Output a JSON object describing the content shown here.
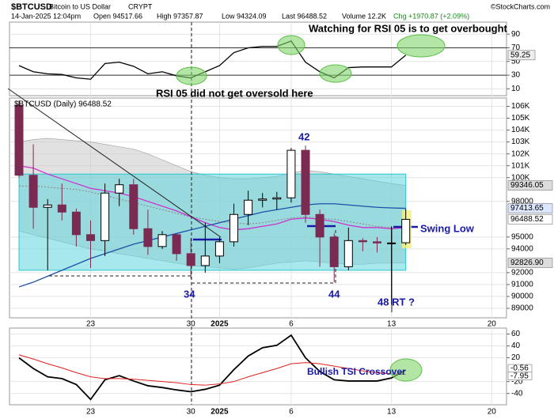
{
  "header": {
    "symbol": "$BTCUSD",
    "name": "Bitcoin to US Dollar",
    "exchange": "CRYPT",
    "credit": "©StockCharts.com",
    "stamp": "14-Jan-2025 12:04pm",
    "open": "Open 94517.66",
    "high": "High 97357.87",
    "low": "Low 94324.09",
    "last": "Last 96488.52",
    "volume": "Volume 12.2K",
    "change": "Chg +1970.87 (+2.09%)"
  },
  "chart_data": {
    "type": "candlestick",
    "legend": "$BTCUSD (Daily) 96488.52",
    "categories": [
      null,
      null,
      null,
      null,
      null,
      "23",
      null,
      null,
      null,
      null,
      null,
      null,
      "30",
      null,
      "2025",
      null,
      null,
      null,
      null,
      "6",
      null,
      null,
      null,
      null,
      null,
      null,
      "13",
      null,
      null,
      null,
      null,
      null,
      null,
      "20"
    ],
    "open": [
      106100,
      100200,
      97500,
      97700,
      97100,
      95200,
      94700,
      98700,
      99400,
      95700,
      94200,
      95200,
      93600,
      92600,
      93400,
      94600,
      96900,
      98100,
      98200,
      98300,
      102300,
      96900,
      95000,
      92500,
      94700,
      94600,
      94500,
      94517.66,
      null,
      null,
      null,
      null,
      null,
      null
    ],
    "high": [
      106500,
      102800,
      98200,
      99500,
      97400,
      96400,
      99500,
      99900,
      99900,
      97300,
      95500,
      95300,
      94900,
      96200,
      95000,
      97800,
      98900,
      98700,
      98800,
      102500,
      102700,
      97300,
      95300,
      95800,
      94900,
      95000,
      95900,
      97357.87,
      null,
      null,
      null,
      null,
      null,
      null
    ],
    "low": [
      100000,
      95700,
      92200,
      96400,
      94200,
      92400,
      93400,
      97600,
      95200,
      93500,
      94000,
      93000,
      91500,
      92000,
      92800,
      94200,
      96000,
      97500,
      97300,
      97900,
      96200,
      92500,
      91200,
      92200,
      93800,
      93700,
      89300,
      94324.09,
      null,
      null,
      null,
      null,
      null,
      null
    ],
    "close": [
      100200,
      97500,
      97700,
      97100,
      95200,
      94700,
      98700,
      99400,
      95700,
      94200,
      95200,
      93600,
      92600,
      93400,
      94600,
      96900,
      98100,
      98200,
      98300,
      102300,
      96900,
      95000,
      92500,
      94700,
      94600,
      94500,
      94500,
      96488.52,
      null,
      null,
      null,
      null,
      null,
      null
    ],
    "up_color": "#000000",
    "down_color": "#7b2a52",
    "bands": {
      "color": "#c8c8c8",
      "upper": [
        103000,
        103200,
        103300,
        103200,
        103100,
        103000,
        102800,
        102600,
        102400,
        102000,
        101500,
        101000,
        100500,
        100200,
        100000,
        99900,
        99900,
        100000,
        100100,
        100400,
        100600,
        100500,
        100300,
        100100,
        99900,
        99700,
        99500,
        99346.05,
        null,
        null,
        null,
        null,
        null,
        null
      ],
      "lower": [
        95500,
        95200,
        94900,
        94600,
        94300,
        94000,
        93800,
        93600,
        93400,
        93200,
        93000,
        92800,
        92600,
        92500,
        92400,
        92300,
        92400,
        92600,
        92800,
        92900,
        93000,
        92900,
        92800,
        92700,
        92700,
        92800,
        92800,
        92826.9,
        null,
        null,
        null,
        null,
        null,
        null
      ]
    },
    "overlays": [
      {
        "color": "#888888",
        "dash": true,
        "values": [
          99300,
          99300,
          99200,
          99100,
          99000,
          98800,
          98500,
          98200,
          97900,
          97600,
          97300,
          97000,
          96700,
          96500,
          96300,
          96200,
          96100,
          96200,
          96400,
          96600,
          96700,
          96600,
          96500,
          96300,
          96100,
          95900,
          95800,
          95700,
          null,
          null,
          null,
          null,
          null,
          null
        ]
      },
      {
        "color": "#cc33cc",
        "dash": false,
        "values": [
          101000,
          100800,
          100300,
          99900,
          99500,
          99100,
          98900,
          98700,
          98400,
          98000,
          97600,
          97200,
          96700,
          96200,
          95800,
          95600,
          95700,
          95900,
          96100,
          96500,
          96600,
          96500,
          96300,
          96000,
          95800,
          95800,
          95700,
          95800,
          null,
          null,
          null,
          null,
          null,
          null
        ]
      },
      {
        "color": "#1f4fa8",
        "dash": false,
        "values": [
          90800,
          91200,
          91700,
          92200,
          92700,
          93200,
          93600,
          94000,
          94400,
          94700,
          95000,
          95300,
          95600,
          95900,
          96200,
          96500,
          96800,
          97100,
          97300,
          97500,
          97700,
          97800,
          97800,
          97700,
          97600,
          97500,
          97450,
          97413.65,
          null,
          null,
          null,
          null,
          null,
          null
        ]
      }
    ],
    "zone": {
      "color": "#5fd6dc",
      "range": [
        92200,
        100300
      ]
    },
    "ylim": [
      88200,
      106700
    ],
    "yticks": [
      89000,
      90000,
      91000,
      92000,
      94000,
      95000,
      98000,
      {
        "value": 100000,
        "label": "100K"
      },
      {
        "value": 101000,
        "label": "101K"
      },
      {
        "value": 102000,
        "label": "102K"
      },
      {
        "value": 103000,
        "label": "103K"
      },
      {
        "value": 104000,
        "label": "104K"
      },
      {
        "value": 105000,
        "label": "105K"
      },
      {
        "value": 106000,
        "label": "106K"
      }
    ],
    "grid": true,
    "price_labels": [
      {
        "value": 99346.05,
        "color": "#dddddd"
      },
      {
        "value": 97413.65,
        "color": "#dde6ff"
      },
      {
        "value": 96488.52,
        "color": "#ffffff"
      },
      {
        "value": 92826.9,
        "label": "92826.90",
        "color": "#dddddd"
      }
    ],
    "annotations": [
      "Watching for RSI 05 is to get overbought",
      "RSI 05 did not get oversold here",
      "42",
      "34",
      "44",
      "48 RT ?",
      "Swing Low",
      "Bullish TSI Crossover"
    ],
    "rsi": {
      "type": "line",
      "color": "#000000",
      "values": [
        44,
        35,
        32,
        31,
        26,
        24,
        47,
        49,
        43,
        32,
        35,
        29,
        26,
        35,
        44,
        63,
        70,
        72,
        72,
        80,
        49,
        35,
        26,
        41,
        42,
        42,
        42,
        59.25,
        null,
        null,
        null,
        null,
        null,
        null
      ],
      "ylim": [
        0,
        107.6
      ],
      "yticks": [
        10,
        30,
        50,
        70,
        90
      ],
      "levels": [
        70,
        30
      ],
      "last": 59.25
    },
    "tsi": {
      "type": "line",
      "series": [
        {
          "color": "#000000",
          "values": [
            20,
            2,
            -12,
            -15,
            -25,
            -50,
            -17,
            -10,
            -19,
            -27,
            -30,
            -34,
            -37,
            -33,
            -26,
            0,
            23,
            37,
            41,
            58,
            20,
            -3,
            -17,
            -19,
            -19,
            -19,
            -14,
            -0.56,
            null,
            null,
            null,
            null,
            null,
            null
          ]
        },
        {
          "color": "#e02020",
          "values": [
            25,
            18,
            10,
            3,
            -5,
            -12,
            -15,
            -15,
            -16,
            -18,
            -20,
            -22,
            -25,
            -26,
            -24,
            -20,
            -12,
            -5,
            2,
            10,
            12,
            10,
            6,
            2,
            -2,
            -5,
            -7,
            -7.95,
            null,
            null,
            null,
            null,
            null,
            null
          ]
        }
      ],
      "ylim": [
        -59,
        70
      ],
      "yticks": [
        -40,
        -20,
        20,
        40,
        60
      ],
      "last": [
        -0.56,
        -7.95
      ]
    }
  }
}
